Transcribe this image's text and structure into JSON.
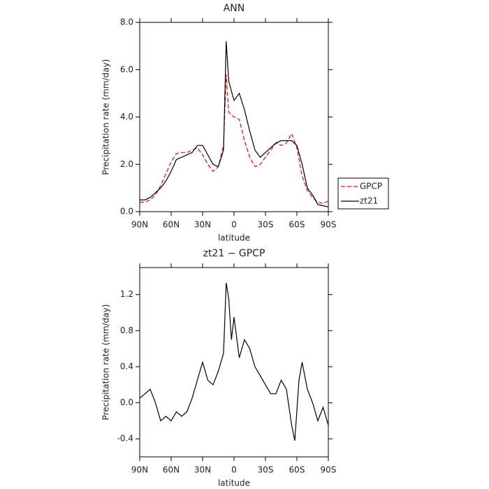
{
  "chart_data": [
    {
      "type": "line",
      "title": "ANN",
      "xlabel": "latitude",
      "ylabel": "Precipitation rate (mm/day)",
      "x": [
        90,
        85,
        80,
        75,
        70,
        65,
        60,
        55,
        50,
        45,
        40,
        35,
        30,
        25,
        20,
        15,
        10,
        7.5,
        5,
        0,
        -5,
        -10,
        -15,
        -20,
        -25,
        -30,
        -35,
        -40,
        -45,
        -50,
        -55,
        -60,
        -65,
        -70,
        -75,
        -80,
        -85,
        -90
      ],
      "series": [
        {
          "name": "GPCP",
          "color": "#ff0000",
          "dash": true,
          "values": [
            0.4,
            0.4,
            0.5,
            0.7,
            1.1,
            1.6,
            2.1,
            2.45,
            2.5,
            2.5,
            2.6,
            2.7,
            2.4,
            2.0,
            1.7,
            1.9,
            2.8,
            5.8,
            4.2,
            4.0,
            3.9,
            3.0,
            2.3,
            1.9,
            2.0,
            2.3,
            2.6,
            2.9,
            2.8,
            2.9,
            3.3,
            2.7,
            1.5,
            0.9,
            0.6,
            0.4,
            0.35,
            0.45
          ]
        },
        {
          "name": "zt21",
          "color": "#000000",
          "dash": false,
          "values": [
            0.5,
            0.5,
            0.6,
            0.8,
            1.0,
            1.3,
            1.7,
            2.2,
            2.3,
            2.4,
            2.5,
            2.8,
            2.8,
            2.4,
            2.0,
            1.9,
            2.6,
            7.2,
            5.5,
            4.7,
            5.0,
            4.3,
            3.4,
            2.6,
            2.3,
            2.5,
            2.7,
            2.9,
            3.0,
            3.0,
            3.0,
            2.8,
            2.0,
            1.0,
            0.7,
            0.3,
            0.25,
            0.2
          ]
        }
      ],
      "xlim": [
        90,
        -90
      ],
      "xticks": [
        {
          "value": 90,
          "label": "90N"
        },
        {
          "value": 60,
          "label": "60N"
        },
        {
          "value": 30,
          "label": "30N"
        },
        0,
        {
          "value": -30,
          "label": "30S"
        },
        {
          "value": -60,
          "label": "60S"
        },
        {
          "value": -90,
          "label": "90S"
        }
      ],
      "ylim": [
        0,
        8
      ],
      "yticks": [
        {
          "value": 0,
          "label": "0.0"
        },
        {
          "value": 2,
          "label": "2.0"
        },
        {
          "value": 4,
          "label": "4.0"
        },
        {
          "value": 6,
          "label": "6.0"
        },
        {
          "value": 8,
          "label": "8.0"
        }
      ],
      "legend": "right"
    },
    {
      "type": "line",
      "title": "zt21 − GPCP",
      "xlabel": "latitude",
      "ylabel": "Precipitation rate (mm/day)",
      "x": [
        90,
        85,
        80,
        75,
        70,
        65,
        60,
        55,
        50,
        45,
        40,
        35,
        30,
        25,
        20,
        15,
        10,
        7.5,
        5,
        2.5,
        0,
        -5,
        -10,
        -15,
        -20,
        -25,
        -30,
        -35,
        -40,
        -45,
        -50,
        -55,
        -58,
        -62,
        -65,
        -70,
        -75,
        -80,
        -85,
        -90
      ],
      "series": [
        {
          "name": "zt21 − GPCP",
          "color": "#000000",
          "dash": false,
          "values": [
            0.05,
            0.1,
            0.15,
            0.0,
            -0.2,
            -0.15,
            -0.2,
            -0.1,
            -0.15,
            -0.1,
            0.05,
            0.25,
            0.45,
            0.25,
            0.2,
            0.35,
            0.55,
            1.33,
            1.15,
            0.7,
            0.95,
            0.5,
            0.7,
            0.6,
            0.4,
            0.3,
            0.2,
            0.1,
            0.1,
            0.25,
            0.15,
            -0.25,
            -0.42,
            0.25,
            0.45,
            0.15,
            0.0,
            -0.2,
            -0.05,
            -0.25
          ]
        }
      ],
      "xlim": [
        90,
        -90
      ],
      "xticks": [
        {
          "value": 90,
          "label": "90N"
        },
        {
          "value": 60,
          "label": "60N"
        },
        {
          "value": 30,
          "label": "30N"
        },
        0,
        {
          "value": -30,
          "label": "30S"
        },
        {
          "value": -60,
          "label": "60S"
        },
        {
          "value": -90,
          "label": "90S"
        }
      ],
      "ylim": [
        -0.6,
        1.5
      ],
      "yticks": [
        {
          "value": -0.4,
          "label": "-0.4"
        },
        {
          "value": 0,
          "label": "0.0"
        },
        {
          "value": 0.4,
          "label": "0.4"
        },
        {
          "value": 0.8,
          "label": "0.8"
        },
        {
          "value": 1.2,
          "label": "1.2"
        }
      ]
    }
  ]
}
